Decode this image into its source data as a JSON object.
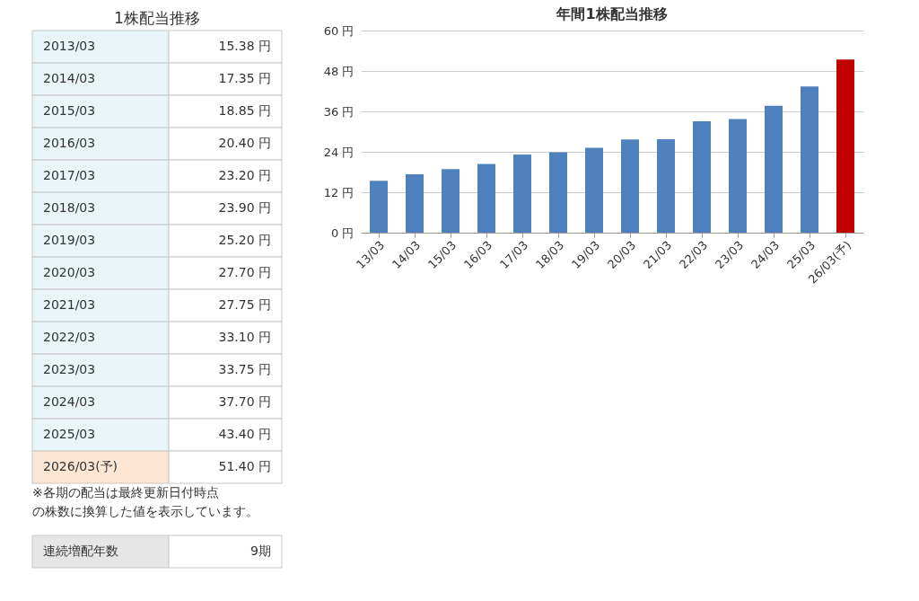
{
  "chart_data": [
    {
      "type": "other",
      "title": "1株配当推移",
      "annotations": [
        "2013/03",
        "15.38 円",
        "2014/03",
        "17.35 円",
        "2015/03",
        "18.85 円",
        "2016/03",
        "20.40 円",
        "2017/03",
        "23.20 円",
        "2018/03",
        "23.90 円",
        "2019/03",
        "25.20 円",
        "2020/03",
        "27.70 円",
        "2021/03",
        "27.75 円",
        "2022/03",
        "33.10 円",
        "2023/03",
        "33.75 円",
        "2024/03",
        "37.70 円",
        "2025/03",
        "43.40 円",
        "2026/03(予)",
        "51.40 円",
        "※各期の配当は最終更新日付時点",
        "の株数に換算した値を表示しています。",
        "連続増配年数",
        "9期"
      ]
    },
    {
      "type": "bar",
      "title": "年間1株配当推移",
      "categories": [
        "13/03",
        "14/03",
        "15/03",
        "16/03",
        "17/03",
        "18/03",
        "19/03",
        "20/03",
        "21/03",
        "22/03",
        "23/03",
        "24/03",
        "25/03",
        "26/03(予)"
      ],
      "values": [
        15.38,
        17.35,
        18.85,
        20.4,
        23.2,
        23.9,
        25.2,
        27.7,
        27.75,
        33.1,
        33.75,
        37.7,
        43.4,
        51.4
      ],
      "colors": [
        "#4f81bd",
        "#4f81bd",
        "#4f81bd",
        "#4f81bd",
        "#4f81bd",
        "#4f81bd",
        "#4f81bd",
        "#4f81bd",
        "#4f81bd",
        "#4f81bd",
        "#4f81bd",
        "#4f81bd",
        "#4f81bd",
        "#c00000"
      ],
      "ylim": [
        0,
        60
      ],
      "yticks": [
        {
          "value": 0,
          "label": "0 円"
        },
        {
          "value": 12,
          "label": "12 円"
        },
        {
          "value": 24,
          "label": "24 円"
        },
        {
          "value": 36,
          "label": "36 円"
        },
        {
          "value": 48,
          "label": "48 円"
        },
        {
          "value": 60,
          "label": "60 円"
        }
      ],
      "grid": "y"
    }
  ]
}
